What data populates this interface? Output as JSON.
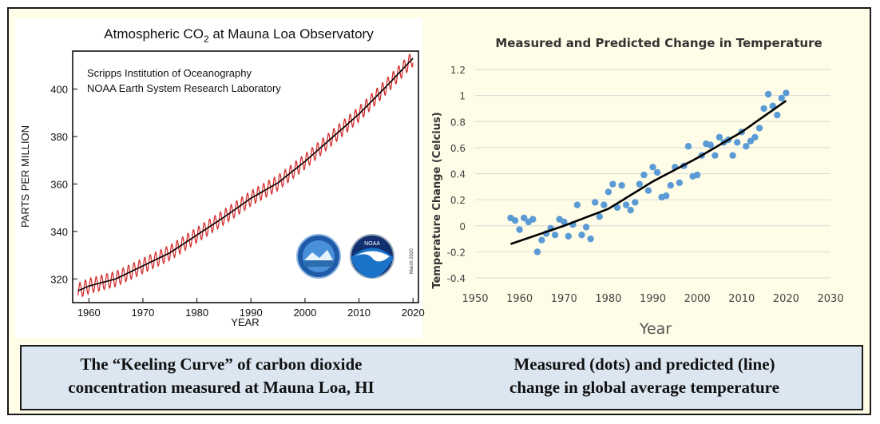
{
  "captions": {
    "left": [
      "The “Keeling Curve” of carbon dioxide",
      "concentration measured at Mauna Loa, HI"
    ],
    "right": [
      "Measured (dots) and predicted (line)",
      "change in global average temperature"
    ]
  },
  "chart_data": [
    {
      "type": "line",
      "title_main": "Atmospheric CO",
      "title_sub": "2",
      "title_rest": " at Mauna Loa Observatory",
      "annotations": [
        "Scripps Institution of Oceanography",
        "NOAA Earth System Research Laboratory",
        "March 2020"
      ],
      "logos": [
        "scripps-logo",
        "noaa-logo"
      ],
      "logo_text": "NOAA",
      "xlabel": "YEAR",
      "ylabel": "PARTS PER MILLION",
      "xlim": [
        1957,
        2021
      ],
      "ylim": [
        310,
        416
      ],
      "xticks": [
        "1960",
        "1970",
        "1980",
        "1990",
        "2000",
        "2010",
        "2020"
      ],
      "yticks": [
        "320",
        "340",
        "360",
        "380",
        "400"
      ],
      "grid": false,
      "colors": {
        "monthly": "#d32f2f",
        "trend": "#000000"
      },
      "series": [
        {
          "kind": "monthly",
          "seasonal_amplitude_ppm": 3.2,
          "x": [
            1958,
            1960,
            1965,
            1970,
            1975,
            1980,
            1985,
            1990,
            1995,
            2000,
            2005,
            2010,
            2015,
            2020
          ],
          "values": [
            315,
            317,
            320,
            325.5,
            331,
            338.5,
            346,
            354,
            360.5,
            369.5,
            379.5,
            389.5,
            401,
            413
          ]
        },
        {
          "kind": "trend",
          "x": [
            1958,
            1960,
            1965,
            1970,
            1975,
            1980,
            1985,
            1990,
            1995,
            2000,
            2005,
            2010,
            2015,
            2020
          ],
          "values": [
            315,
            317,
            320,
            325.5,
            331,
            338.5,
            346,
            354,
            360.5,
            369.5,
            379.5,
            389.5,
            401,
            413
          ]
        }
      ]
    },
    {
      "type": "scatter",
      "title": "Measured and Predicted Change in Temperature",
      "xlabel": "Year",
      "ylabel": "Temperature Change (Celcius)",
      "xlim": [
        1950,
        2030
      ],
      "ylim": [
        -0.4,
        1.2
      ],
      "xticks": [
        "1950",
        "1960",
        "1970",
        "1980",
        "1990",
        "2000",
        "2010",
        "2020",
        "2030"
      ],
      "yticks": [
        "-0.4",
        "-0.2",
        "0",
        "0.2",
        "0.4",
        "0.6",
        "0.8",
        "1",
        "1.2"
      ],
      "grid": true,
      "colors": {
        "dots": "#5b9bd5",
        "line": "#000000",
        "grid": "#d9d9d9"
      },
      "series": [
        {
          "kind": "measured",
          "x": [
            1958,
            1959,
            1960,
            1961,
            1962,
            1963,
            1964,
            1965,
            1966,
            1967,
            1968,
            1969,
            1970,
            1971,
            1972,
            1973,
            1974,
            1975,
            1976,
            1977,
            1978,
            1979,
            1980,
            1981,
            1982,
            1983,
            1984,
            1985,
            1986,
            1987,
            1988,
            1989,
            1990,
            1991,
            1992,
            1993,
            1994,
            1995,
            1996,
            1997,
            1998,
            1999,
            2000,
            2001,
            2002,
            2003,
            2004,
            2005,
            2006,
            2007,
            2008,
            2009,
            2010,
            2011,
            2012,
            2013,
            2014,
            2015,
            2016,
            2017,
            2018,
            2019,
            2020
          ],
          "values": [
            0.06,
            0.04,
            -0.03,
            0.06,
            0.03,
            0.05,
            -0.2,
            -0.11,
            -0.06,
            -0.02,
            -0.07,
            0.05,
            0.03,
            -0.08,
            0.01,
            0.16,
            -0.07,
            -0.01,
            -0.1,
            0.18,
            0.07,
            0.16,
            0.26,
            0.32,
            0.14,
            0.31,
            0.16,
            0.12,
            0.18,
            0.32,
            0.39,
            0.27,
            0.45,
            0.41,
            0.22,
            0.23,
            0.31,
            0.45,
            0.33,
            0.46,
            0.61,
            0.38,
            0.39,
            0.54,
            0.63,
            0.62,
            0.54,
            0.68,
            0.64,
            0.66,
            0.54,
            0.64,
            0.72,
            0.61,
            0.65,
            0.68,
            0.75,
            0.9,
            1.01,
            0.92,
            0.85,
            0.98,
            1.02
          ]
        },
        {
          "kind": "predicted",
          "x": [
            1958,
            1970,
            1980,
            1990,
            2000,
            2010,
            2020
          ],
          "values": [
            -0.14,
            0.0,
            0.13,
            0.34,
            0.52,
            0.72,
            0.96
          ]
        }
      ]
    }
  ]
}
